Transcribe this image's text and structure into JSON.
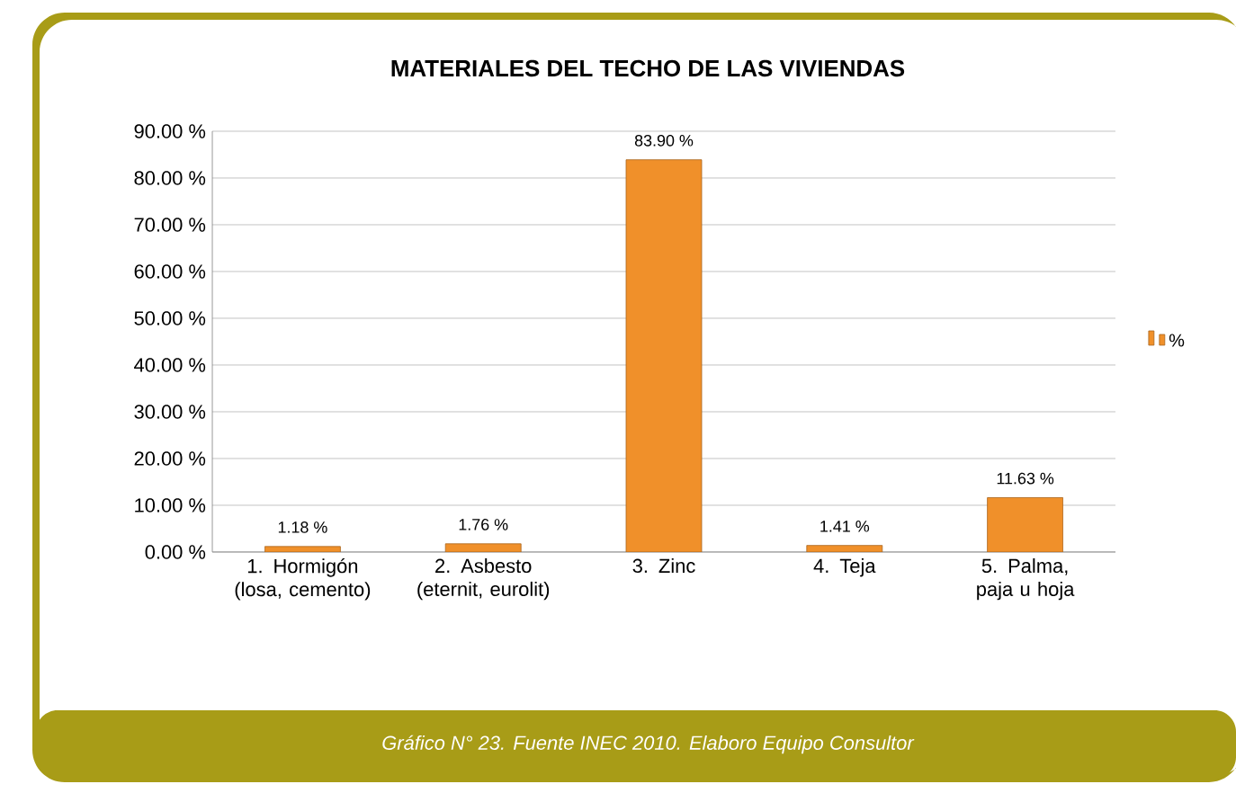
{
  "chart_data": {
    "type": "bar",
    "title": "MATERIALES DEL TECHO DE LAS VIVIENDAS",
    "categories": [
      "1. Hormigón (losa, cemento)",
      "2. Asbesto (eternit, eurolit)",
      "3. Zinc",
      "4. Teja",
      "5. Palma, paja u hoja"
    ],
    "series": [
      {
        "name": "%",
        "color": "#f0902a",
        "values": [
          1.18,
          1.76,
          83.9,
          1.41,
          11.63
        ],
        "value_labels": [
          "1.18 %",
          "1.76 %",
          "83.90 %",
          "1.41 %",
          "11.63 %"
        ]
      }
    ],
    "ylim": [
      0,
      90
    ],
    "yticks": [
      {
        "value": 0,
        "label": "0.00 %"
      },
      {
        "value": 10,
        "label": "10.00 %"
      },
      {
        "value": 20,
        "label": "20.00 %"
      },
      {
        "value": 30,
        "label": "30.00 %"
      },
      {
        "value": 40,
        "label": "40.00 %"
      },
      {
        "value": 50,
        "label": "50.00 %"
      },
      {
        "value": 60,
        "label": "60.00 %"
      },
      {
        "value": 70,
        "label": "70.00 %"
      },
      {
        "value": 80,
        "label": "80.00 %"
      },
      {
        "value": 90,
        "label": "90.00 %"
      }
    ],
    "grid": "y",
    "legend": "right",
    "annotations": [
      "Gráfico  N° 23. Fuente INEC 2010. Elaboro Equipo Consultor"
    ]
  }
}
